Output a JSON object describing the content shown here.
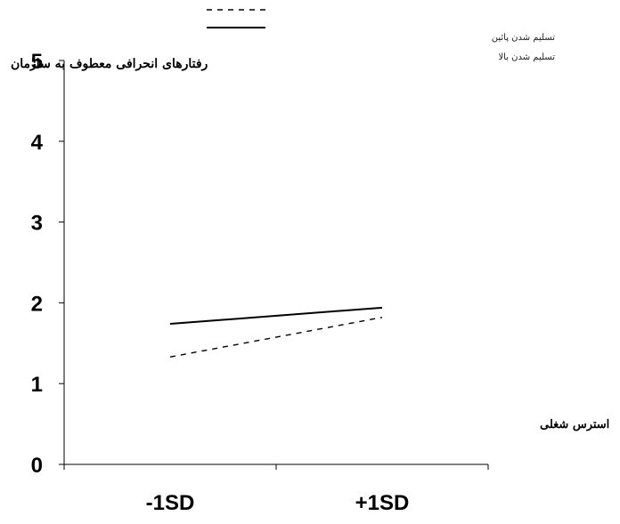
{
  "chart_data": {
    "type": "line",
    "categories": [
      "-1SD",
      "+1SD"
    ],
    "xlabel": "استرس شغلی",
    "ylabel": "رفتارهای انحرافی معطوف به سازمان",
    "ylim": [
      0,
      5
    ],
    "yticks": [
      0,
      1,
      2,
      3,
      4,
      5
    ],
    "grid": false,
    "legend_position": "top",
    "series": [
      {
        "name": "تسلیم شدن پائین",
        "style": "dashed",
        "color": "#000000",
        "values": [
          1.33,
          1.82
        ]
      },
      {
        "name": "تسلیم شدن بالا",
        "style": "solid",
        "color": "#000000",
        "values": [
          1.74,
          1.94
        ]
      }
    ]
  }
}
